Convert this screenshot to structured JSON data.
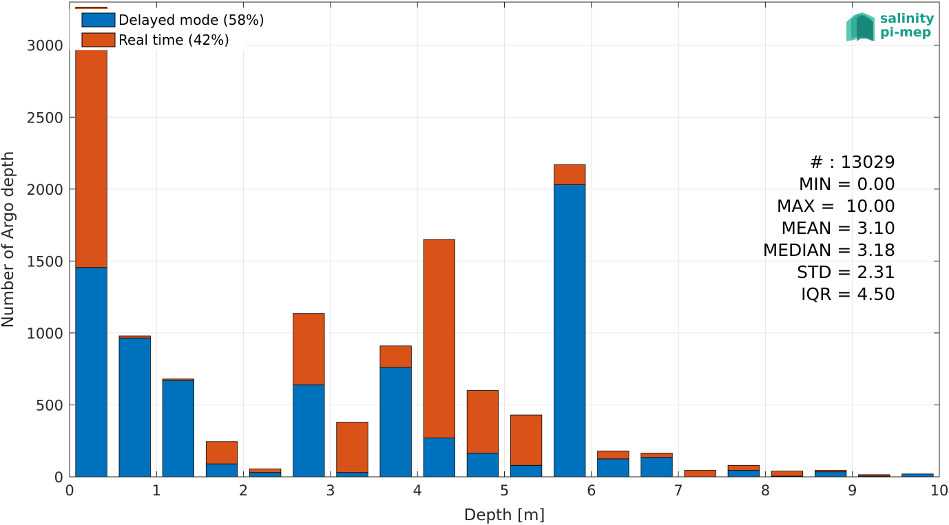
{
  "chart_data": {
    "type": "bar",
    "stacked": true,
    "xlabel": "Depth [m]",
    "ylabel": "Number of Argo depth",
    "xlim": [
      0,
      10
    ],
    "ylim": [
      0,
      3300
    ],
    "xticks": [
      "0",
      "1",
      "2",
      "3",
      "4",
      "5",
      "6",
      "7",
      "8",
      "9",
      "10"
    ],
    "yticks": [
      "0",
      "500",
      "1000",
      "1500",
      "2000",
      "2500",
      "3000"
    ],
    "grid": true,
    "legend_position": "top-left",
    "bin_width": 0.36,
    "x": [
      0.25,
      0.75,
      1.25,
      1.75,
      2.25,
      2.75,
      3.25,
      3.75,
      4.25,
      4.75,
      5.25,
      5.75,
      6.25,
      6.75,
      7.25,
      7.75,
      8.25,
      8.75,
      9.25,
      9.75
    ],
    "series": [
      {
        "name": "Delayed mode (58%)",
        "color": "#0072bd",
        "values": [
          1455,
          965,
          670,
          90,
          30,
          640,
          30,
          760,
          270,
          165,
          80,
          2030,
          125,
          135,
          0,
          45,
          5,
          35,
          5,
          20
        ]
      },
      {
        "name": "Real time (42%)",
        "color": "#d95319",
        "values": [
          1810,
          15,
          10,
          155,
          25,
          495,
          350,
          150,
          1380,
          435,
          350,
          140,
          55,
          30,
          45,
          35,
          35,
          10,
          10,
          0
        ]
      }
    ],
    "stats": [
      "# : 13029",
      "MIN = 0.00",
      "MAX =  10.00",
      "MEAN = 3.10",
      "MEDIAN = 3.18",
      "STD = 2.31",
      "IQR = 4.50"
    ]
  },
  "logo": {
    "line1": "salinity",
    "line2": "pi-mep",
    "color": "#1a9e8c"
  }
}
